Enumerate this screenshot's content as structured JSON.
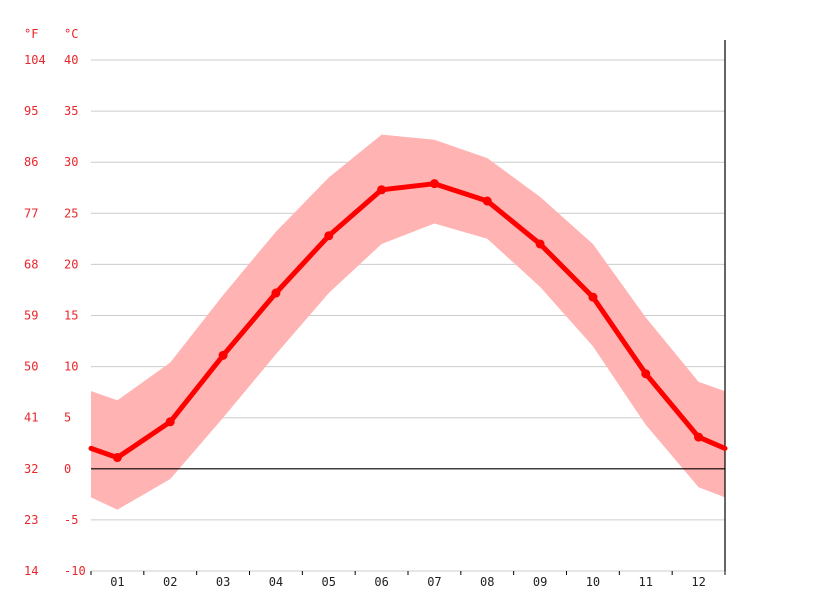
{
  "chart_data": {
    "type": "line",
    "title": "",
    "unit_labels": {
      "left": "°F",
      "right": "°C"
    },
    "categories": [
      "01",
      "02",
      "03",
      "04",
      "05",
      "06",
      "07",
      "08",
      "09",
      "10",
      "11",
      "12"
    ],
    "y_ticks_c": [
      40,
      35,
      30,
      25,
      20,
      15,
      10,
      5,
      0,
      -5,
      -10
    ],
    "y_ticks_f": [
      104,
      95,
      86,
      77,
      68,
      59,
      50,
      41,
      32,
      23,
      14
    ],
    "ylim": [
      -10,
      40
    ],
    "grid": true,
    "series": [
      {
        "name": "",
        "role": "mean",
        "values": [
          1.1,
          4.6,
          11.1,
          17.2,
          22.8,
          27.3,
          27.9,
          26.2,
          22.0,
          16.8,
          9.3,
          3.1
        ]
      }
    ],
    "band": {
      "role": "range",
      "upper": [
        6.7,
        10.4,
        17.0,
        23.2,
        28.5,
        32.7,
        32.2,
        30.4,
        26.6,
        22.0,
        14.8,
        8.5
      ],
      "lower": [
        -4.0,
        -1.0,
        5.0,
        11.2,
        17.2,
        22.0,
        24.0,
        22.5,
        17.8,
        12.0,
        4.3,
        -1.8
      ],
      "left_edge": {
        "upper": 7.6,
        "lower": -2.8,
        "mean": 2.0
      },
      "right_edge": {
        "upper": 7.6,
        "lower": -2.8,
        "mean": 2.0
      }
    },
    "colors": {
      "line": "#ff0000",
      "band": "#ffb3b3",
      "axis_text": "#e8262b",
      "grid": "#cccccc",
      "zero_line": "#000000"
    }
  }
}
